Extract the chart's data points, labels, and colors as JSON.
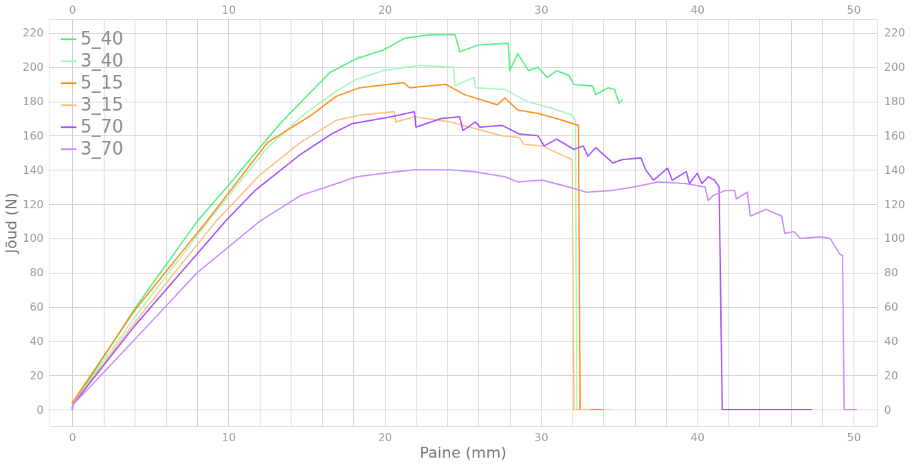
{
  "chart_data": {
    "type": "line",
    "xlabel": "Paine (mm)",
    "ylabel": "Jõud (N)",
    "xlim": [
      -1.5,
      51.5
    ],
    "ylim": [
      -9.6,
      228
    ],
    "xticks": [
      0,
      {
        "value": 2,
        "label": null
      },
      {
        "value": 4,
        "label": null
      },
      {
        "value": 6,
        "label": null
      },
      {
        "value": 8,
        "label": null
      },
      10,
      {
        "value": 12,
        "label": null
      },
      {
        "value": 14,
        "label": null
      },
      {
        "value": 16,
        "label": null
      },
      {
        "value": 18,
        "label": null
      },
      20,
      {
        "value": 22,
        "label": null
      },
      {
        "value": 24,
        "label": null
      },
      {
        "value": 26,
        "label": null
      },
      {
        "value": 28,
        "label": null
      },
      30,
      {
        "value": 32,
        "label": null
      },
      {
        "value": 34,
        "label": null
      },
      {
        "value": 36,
        "label": null
      },
      {
        "value": 38,
        "label": null
      },
      40,
      {
        "value": 42,
        "label": null
      },
      {
        "value": 44,
        "label": null
      },
      {
        "value": 46,
        "label": null
      },
      {
        "value": 48,
        "label": null
      },
      50
    ],
    "yticks": [
      0,
      20,
      40,
      60,
      80,
      100,
      120,
      140,
      160,
      180,
      200,
      220
    ],
    "x2lim": [
      -1.5,
      51.5
    ],
    "x2ticks": [
      0,
      10,
      20,
      30,
      40,
      50
    ],
    "y2lim": [
      -9.6,
      228
    ],
    "y2ticks": [
      0,
      20,
      40,
      60,
      80,
      100,
      120,
      140,
      160,
      180,
      200,
      220
    ],
    "grid": true,
    "legend": "top left",
    "line_style": "solid",
    "series": [
      {
        "name": "5_40",
        "color": "#4ef07a",
        "x": [
          0,
          4,
          8,
          10,
          12,
          13.4,
          15,
          16.5,
          18.2,
          19.9,
          21.3,
          22.9,
          24.5,
          24.8,
          26,
          27.9,
          28,
          28.5,
          29.2,
          29.8,
          30.4,
          31,
          31.8,
          32.1,
          33.3,
          33.5,
          34.3,
          34.7,
          35,
          35.2
        ],
        "values": [
          2,
          59,
          110,
          131,
          153,
          168,
          183,
          197,
          205,
          210,
          217,
          219,
          219,
          209,
          213,
          214,
          198,
          208,
          198,
          200,
          194,
          198,
          195,
          190,
          189,
          184,
          188,
          187,
          179,
          181
        ]
      },
      {
        "name": "3_40",
        "color": "#a8f5bf",
        "x": [
          0,
          0.05,
          4,
          8.7,
          12.4,
          14.9,
          16.9,
          18.2,
          19.9,
          22.2,
          24.4,
          24.5,
          25.7,
          25.8,
          27.7,
          29.1,
          30.7,
          32,
          32.2,
          32.3,
          34.4
        ],
        "values": [
          0,
          3,
          54,
          110,
          152,
          173,
          186,
          193,
          198,
          201,
          200,
          189,
          194,
          188,
          187,
          180,
          176,
          172,
          169,
          0,
          0
        ]
      },
      {
        "name": "5_15",
        "color": "#ff8c1a",
        "x": [
          0,
          4,
          8.6,
          12.5,
          15.3,
          16.9,
          18.4,
          21.2,
          21.6,
          23.9,
          25.1,
          27.2,
          27.7,
          28.5,
          29.8,
          31,
          32.4,
          32.5,
          34
        ],
        "values": [
          4,
          58,
          110,
          156,
          172,
          183,
          188,
          191,
          188,
          190,
          184,
          178,
          182,
          175,
          173,
          170,
          166,
          0,
          0
        ]
      },
      {
        "name": "3_15",
        "color": "#ffbf80",
        "x": [
          0,
          0.05,
          4,
          9.2,
          12,
          14.6,
          16.9,
          18.4,
          20.6,
          20.7,
          21.9,
          24.2,
          27.5,
          28.6,
          28.9,
          30.1,
          31.5,
          32,
          32.1,
          33.1
        ],
        "values": [
          0,
          3,
          51,
          110,
          137,
          156,
          169,
          172,
          174,
          168,
          171,
          168,
          160,
          159,
          155,
          154,
          148,
          146,
          0,
          0
        ]
      },
      {
        "name": "5_70",
        "color": "#a64dff",
        "x": [
          0,
          0.05,
          4,
          9.8,
          11.7,
          14.6,
          16.6,
          17.9,
          20.4,
          21.9,
          22,
          23.6,
          24.8,
          25,
          25.8,
          26.1,
          27.5,
          28.6,
          29.8,
          30.2,
          31,
          32.1,
          32.7,
          33,
          33.5,
          34.6,
          35.2,
          36.4,
          36.7,
          37.2,
          38.1,
          38.4,
          39.3,
          39.5,
          40,
          40.3,
          40.7,
          41.1,
          41.4,
          41.6,
          47.3
        ],
        "values": [
          0,
          3,
          49,
          110,
          128,
          149,
          161,
          167,
          171,
          174,
          165,
          170,
          171,
          163,
          168,
          165,
          166,
          161,
          160,
          154,
          158,
          152,
          154,
          148,
          153,
          144,
          146,
          147,
          140,
          134,
          141,
          134,
          139,
          132,
          138,
          132,
          136,
          134,
          130,
          0,
          0
        ]
      },
      {
        "name": "3_70",
        "color": "#c88cff",
        "x": [
          0,
          0.05,
          0.8,
          4,
          8,
          12,
          14.6,
          16.9,
          18.2,
          19.9,
          21.8,
          24.2,
          25.7,
          27.7,
          28.5,
          30.1,
          31.8,
          32.9,
          34.5,
          35.9,
          37.5,
          39.3,
          40.5,
          40.7,
          41,
          41.8,
          42.4,
          42.5,
          43.2,
          43.4,
          44.4,
          45.4,
          45.6,
          46.2,
          46.6,
          47.9,
          48.5,
          49.1,
          49.3,
          49.4,
          50.2
        ],
        "values": [
          0,
          3,
          10,
          41,
          80,
          110,
          125,
          132,
          136,
          138,
          140,
          140,
          139,
          136,
          133,
          134,
          130,
          127,
          128,
          130,
          133,
          132,
          130,
          122,
          125,
          128,
          128,
          123,
          127,
          113,
          117,
          113,
          103,
          104,
          100,
          101,
          100,
          91,
          90,
          0,
          0
        ]
      }
    ]
  }
}
